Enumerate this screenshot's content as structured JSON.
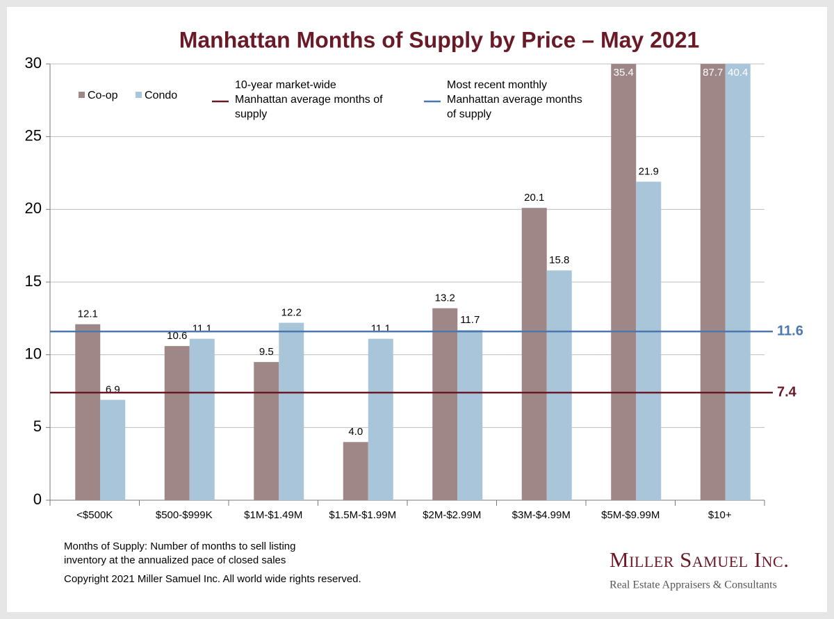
{
  "chart_data": {
    "type": "bar",
    "title": "Manhattan Months of Supply by Price – May 2021",
    "categories": [
      "<$500K",
      "$500-$999K",
      "$1M-$1.49M",
      "$1.5M-$1.99M",
      "$2M-$2.99M",
      "$3M-$4.99M",
      "$5M-$9.99M",
      "$10+"
    ],
    "series": [
      {
        "name": "Co-op",
        "color": "#9f8787",
        "values": [
          12.1,
          10.6,
          9.5,
          4.0,
          13.2,
          20.1,
          35.4,
          87.7
        ],
        "value_labels": [
          "12.1",
          "10.6",
          "9.5",
          "4.0",
          "13.2",
          "20.1",
          "35.4",
          "87.7"
        ]
      },
      {
        "name": "Condo",
        "color": "#a9c5da",
        "values": [
          6.9,
          11.1,
          12.2,
          11.1,
          11.7,
          15.8,
          21.9,
          40.4
        ],
        "value_labels": [
          "6.9",
          "11.1",
          "12.2",
          "11.1",
          "11.7",
          "15.8",
          "21.9",
          "40.4"
        ]
      }
    ],
    "ylim": [
      0,
      30
    ],
    "yticks": [
      0,
      5,
      10,
      15,
      20,
      25,
      30
    ],
    "grid": true,
    "reference_lines": [
      {
        "label_lines": [
          "10-year market-wide",
          "Manhattan average months of",
          "supply"
        ],
        "value": 7.4,
        "color": "#6a1a26"
      },
      {
        "label_lines": [
          "Most recent monthly",
          "Manhattan average months",
          "of supply"
        ],
        "value": 11.6,
        "color": "#4a77ae"
      }
    ],
    "notes": [
      "Months of Supply: Number of months to sell listing",
      "inventory at the annualized pace of closed sales"
    ],
    "copyright": "Copyright 2021 Miller Samuel Inc.  All world wide rights reserved.",
    "logo": {
      "name": "Miller Samuel Inc.",
      "tagline": "Real Estate Appraisers & Consultants"
    }
  }
}
